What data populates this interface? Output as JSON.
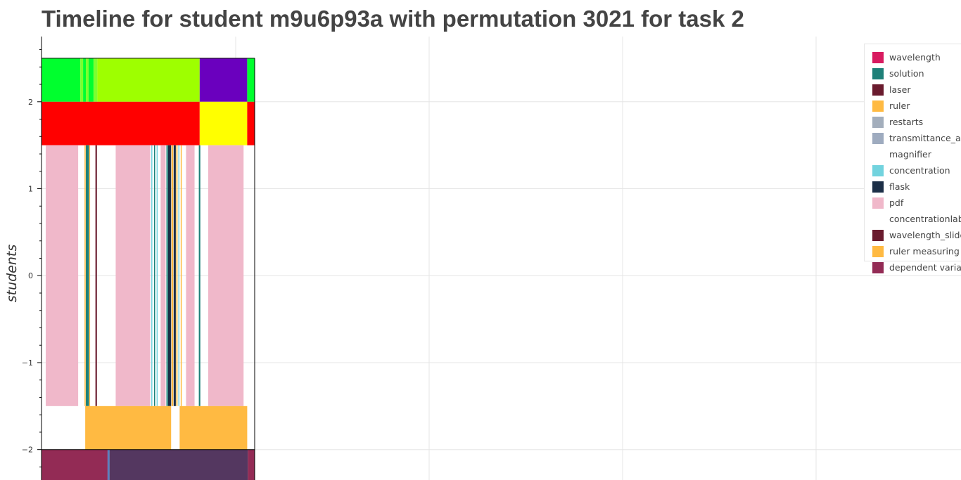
{
  "chart_data": {
    "type": "bar",
    "title": "Timeline for student m9u6p93a with permutation 3021 for task 2",
    "xlabel": "",
    "ylabel": "students",
    "xlim": [
      0,
      100
    ],
    "ylim": [
      -2.35,
      2.75
    ],
    "yticks": [
      2,
      1,
      0,
      -1,
      -2
    ],
    "ytick_labels": [
      "2",
      "1",
      "0",
      "−1",
      "−2"
    ],
    "grid": true,
    "legend_position": "top-right",
    "legend": [
      {
        "label": "wavelength",
        "color": "#D81B60"
      },
      {
        "label": "solution",
        "color": "#1E8078"
      },
      {
        "label": "laser",
        "color": "#6A1B2E"
      },
      {
        "label": "ruler",
        "color": "#FFBA42"
      },
      {
        "label": "restarts",
        "color": "#A3AEBC"
      },
      {
        "label": "transmittance_abs",
        "color": "#9EABBF"
      },
      {
        "label": "magnifier",
        "color": "#FFFFFF"
      },
      {
        "label": "concentration",
        "color": "#72D3DE"
      },
      {
        "label": "flask",
        "color": "#1C2F47"
      },
      {
        "label": "pdf",
        "color": "#F0B8CA"
      },
      {
        "label": "concentrationlab",
        "color": "#FFFFFF"
      },
      {
        "label": "wavelength_slider",
        "color": "#6A1B2E"
      },
      {
        "label": "ruler measuring",
        "color": "#FFBA42"
      },
      {
        "label": "dependent variable",
        "color": "#932B55"
      }
    ],
    "series": [
      {
        "y0": 2,
        "y1": 2.5,
        "segments": [
          {
            "x0": 0,
            "x1": 18.2,
            "color": "#00FF2E"
          },
          {
            "x0": 18.2,
            "x1": 19.5,
            "color": "#7CFF2F"
          },
          {
            "x0": 19.5,
            "x1": 20.8,
            "color": "#00FF2E"
          },
          {
            "x0": 20.8,
            "x1": 22.1,
            "color": "#7CFF2F"
          },
          {
            "x0": 22.1,
            "x1": 24.4,
            "color": "#00FF2E"
          },
          {
            "x0": 24.4,
            "x1": 26.2,
            "color": "#7CFF2F"
          },
          {
            "x0": 26.2,
            "x1": 74.2,
            "color": "#9EFF00"
          },
          {
            "x0": 74.2,
            "x1": 96.5,
            "color": "#6A00BE"
          },
          {
            "x0": 96.5,
            "x1": 100,
            "color": "#00FF2E"
          }
        ]
      },
      {
        "y0": 1.5,
        "y1": 2,
        "segments": [
          {
            "x0": 0,
            "x1": 74.2,
            "color": "#FF0000"
          },
          {
            "x0": 74.2,
            "x1": 96.5,
            "color": "#FFFF00"
          },
          {
            "x0": 96.5,
            "x1": 100,
            "color": "#FF0000"
          }
        ]
      },
      {
        "y0": -1.5,
        "y1": 1.5,
        "segments": [
          {
            "x0": 2.0,
            "x1": 17.2,
            "color": "#F0B8CA"
          },
          {
            "x0": 20.2,
            "x1": 20.7,
            "color": "#FFBA42"
          },
          {
            "x0": 20.8,
            "x1": 22.3,
            "color": "#1E8078"
          },
          {
            "x0": 22.4,
            "x1": 22.8,
            "color": "#FFBA42"
          },
          {
            "x0": 25.3,
            "x1": 26.0,
            "color": "#6A1B2E"
          },
          {
            "x0": 34.8,
            "x1": 51.0,
            "color": "#F0B8CA"
          },
          {
            "x0": 51.5,
            "x1": 52.0,
            "color": "#72D3DE"
          },
          {
            "x0": 52.8,
            "x1": 53.3,
            "color": "#1E8078"
          },
          {
            "x0": 54.0,
            "x1": 54.5,
            "color": "#72D3DE"
          },
          {
            "x0": 55.9,
            "x1": 58.2,
            "color": "#F0B8CA"
          },
          {
            "x0": 58.6,
            "x1": 59.3,
            "color": "#1E8078"
          },
          {
            "x0": 59.4,
            "x1": 60.8,
            "color": "#1C2F47"
          },
          {
            "x0": 61.0,
            "x1": 61.8,
            "color": "#FFBA42"
          },
          {
            "x0": 62.0,
            "x1": 63.0,
            "color": "#1C2F47"
          },
          {
            "x0": 63.2,
            "x1": 63.8,
            "color": "#FFBA42"
          },
          {
            "x0": 64.2,
            "x1": 64.7,
            "color": "#72D3DE"
          },
          {
            "x0": 65.3,
            "x1": 65.8,
            "color": "#FFBA42"
          },
          {
            "x0": 67.8,
            "x1": 71.8,
            "color": "#F0B8CA"
          },
          {
            "x0": 73.8,
            "x1": 74.5,
            "color": "#1E8078"
          },
          {
            "x0": 78.2,
            "x1": 94.8,
            "color": "#F0B8CA"
          }
        ]
      },
      {
        "y0": -2,
        "y1": -1.5,
        "segments": [
          {
            "x0": 20.5,
            "x1": 60.8,
            "color": "#FFBA42"
          },
          {
            "x0": 64.8,
            "x1": 96.5,
            "color": "#FFBA42"
          }
        ]
      },
      {
        "y0": -2.5,
        "y1": -2,
        "segments": [
          {
            "x0": 0,
            "x1": 31.0,
            "color": "#932B55"
          },
          {
            "x0": 31.0,
            "x1": 31.9,
            "color": "#5A7FC0"
          },
          {
            "x0": 31.9,
            "x1": 96.8,
            "color": "#543760"
          },
          {
            "x0": 96.8,
            "x1": 100,
            "color": "#932B55"
          }
        ]
      }
    ]
  }
}
